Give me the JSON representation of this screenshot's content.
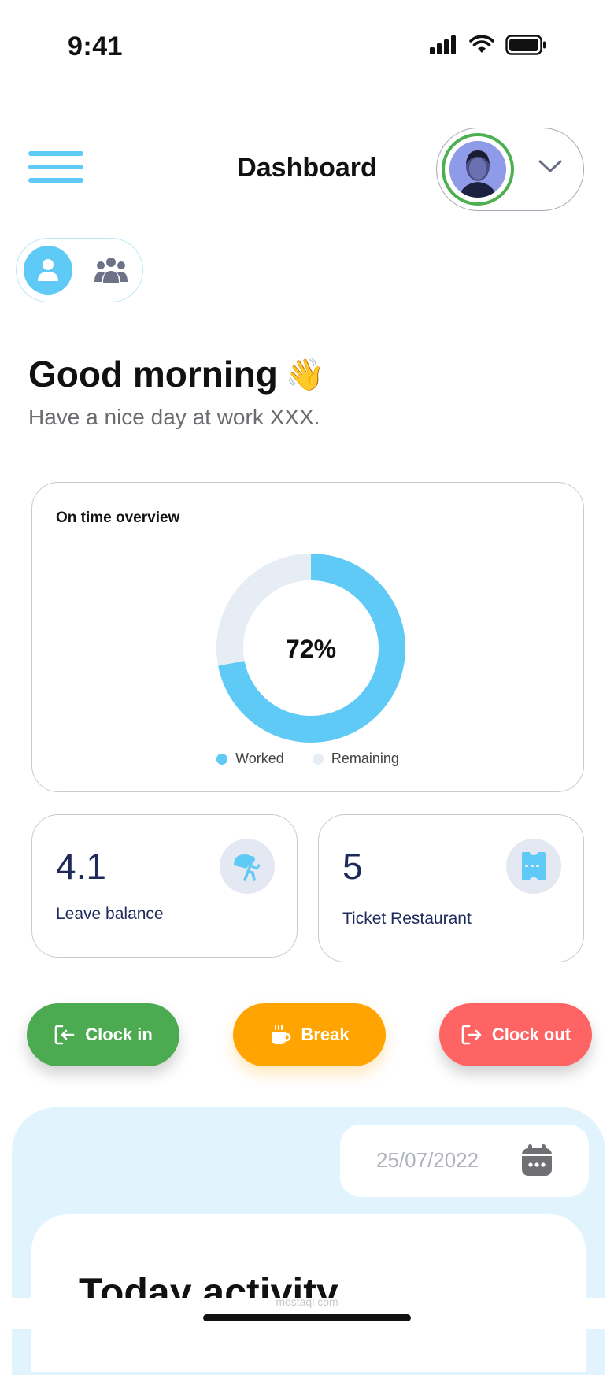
{
  "status_bar": {
    "time": "9:41"
  },
  "header": {
    "title": "Dashboard"
  },
  "greeting": {
    "title": "Good morning",
    "emoji": "👋",
    "subtitle": "Have a nice day at work XXX."
  },
  "overview": {
    "title": "On time overview",
    "percent_label": "72%",
    "legend": [
      "Worked",
      "Remaining"
    ]
  },
  "chart_data": {
    "type": "pie",
    "title": "On time overview",
    "categories": [
      "Worked",
      "Remaining"
    ],
    "values": [
      72,
      28
    ],
    "colors": [
      "#5fcaf5",
      "#e6edf5"
    ]
  },
  "stats": [
    {
      "value": "4.1",
      "label": "Leave balance",
      "icon": "vacation-icon"
    },
    {
      "value": "5",
      "label": "Ticket Restaurant",
      "icon": "ticket-icon"
    }
  ],
  "actions": {
    "clock_in": "Clock in",
    "break": "Break",
    "clock_out": "Clock out"
  },
  "activity": {
    "date": "25/07/2022",
    "title": "Today activity"
  },
  "watermark": "mostaql.com",
  "colors": {
    "accent": "#5fcaf5",
    "clock_in": "#4caa50",
    "break": "#ffa400",
    "clock_out": "#ff6464",
    "navy": "#1e2a5a"
  }
}
